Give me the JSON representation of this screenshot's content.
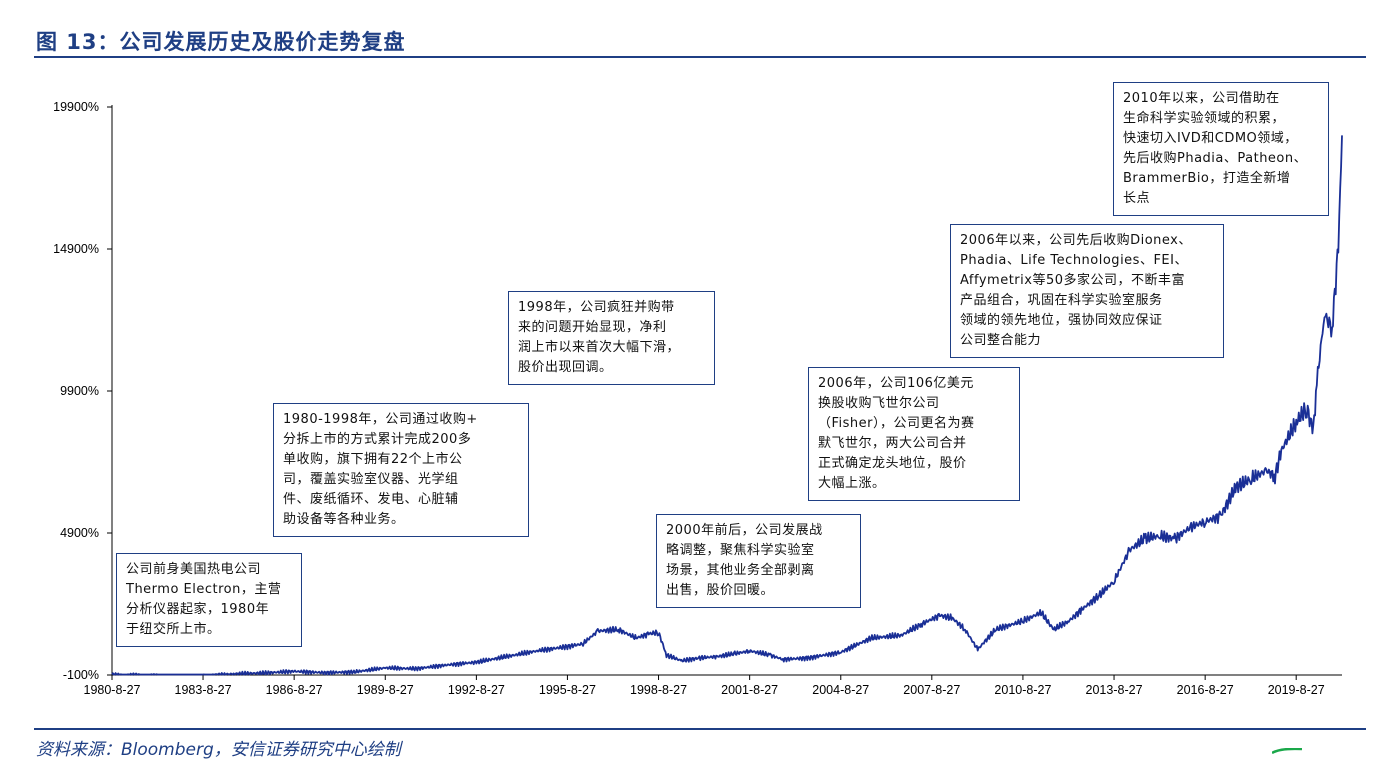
{
  "header": {
    "title": "图 13：公司发展历史及股价走势复盘"
  },
  "footer": {
    "source": "资料来源：Bloomberg，安信证券研究中心绘制"
  },
  "colors": {
    "accent": "#1f3f84",
    "line": "#1a2f96"
  },
  "annotations": [
    {
      "text": "公司前身美国热电公司\nThermo Electron，主营\n分析仪器起家，1980年\n于纽交所上市。"
    },
    {
      "text": "1980-1998年，公司通过收购+\n分拆上市的方式累计完成200多\n单收购，旗下拥有22个上市公\n司，覆盖实验室仪器、光学组\n件、废纸循环、发电、心脏辅\n助设备等各种业务。"
    },
    {
      "text": "1998年，公司疯狂并购带\n来的问题开始显现，净利\n润上市以来首次大幅下滑，\n股价出现回调。"
    },
    {
      "text": "2000年前后，公司发展战\n略调整，聚焦科学实验室\n场景，其他业务全部剥离\n出售，股价回暖。"
    },
    {
      "text": "2006年，公司106亿美元\n换股收购飞世尔公司\n（Fisher），公司更名为赛\n默飞世尔，两大公司合并\n正式确定龙头地位，股价\n大幅上涨。"
    },
    {
      "text": "2006年以来，公司先后收购Dionex、\nPhadia、Life Technologies、FEI、\nAffymetrix等50多家公司，不断丰富\n产品组合，巩固在科学实验室服务\n领域的领先地位，强协同效应保证\n公司整合能力"
    },
    {
      "text": "2010年以来，公司借助在\n生命科学实验领域的积累，\n快速切入IVD和CDMO领域，\n先后收购Phadia、Patheon、\nBrammerBio，打造全新增\n长点"
    }
  ],
  "chart_data": {
    "type": "line",
    "title": "",
    "xlabel": "",
    "ylabel": "",
    "ylim": [
      -100,
      19900
    ],
    "yticks": [
      "-100%",
      "4900%",
      "9900%",
      "14900%",
      "19900%"
    ],
    "ytick_values": [
      -100,
      4900,
      9900,
      14900,
      19900
    ],
    "xticks": [
      "1980-8-27",
      "1983-8-27",
      "1986-8-27",
      "1989-8-27",
      "1992-8-27",
      "1995-8-27",
      "1998-8-27",
      "2001-8-27",
      "2004-8-27",
      "2007-8-27",
      "2010-8-27",
      "2013-8-27",
      "2016-8-27",
      "2019-8-27"
    ],
    "xlim": [
      "1980-8-27",
      "2021-2-28"
    ],
    "series": [
      {
        "x": [
          "1980-8-27",
          "1981-8-27",
          "1982-8-27",
          "1983-8-27",
          "1984-8-27",
          "1985-8-27",
          "1986-8-27",
          "1987-8-27",
          "1988-8-27",
          "1989-8-27",
          "1990-8-27",
          "1991-8-27",
          "1992-8-27",
          "1993-8-27",
          "1994-8-27",
          "1995-8-27",
          "1996-3-1",
          "1996-8-27",
          "1997-5-1",
          "1997-12-1",
          "1998-5-1",
          "1998-8-27",
          "1998-12-1",
          "1999-6-1",
          "2000-1-1",
          "2000-8-1",
          "2001-3-1",
          "2001-8-27",
          "2002-5-1",
          "2002-10-1",
          "2003-8-1",
          "2004-8-27",
          "2005-8-27",
          "2006-8-27",
          "2007-5-1",
          "2007-12-1",
          "2008-5-1",
          "2008-10-1",
          "2009-3-1",
          "2009-10-1",
          "2010-8-27",
          "2011-4-1",
          "2011-9-1",
          "2012-3-1",
          "2012-8-1",
          "2013-3-1",
          "2013-8-27",
          "2014-3-1",
          "2014-9-1",
          "2015-3-1",
          "2015-8-27",
          "2016-3-1",
          "2016-8-27",
          "2017-3-1",
          "2017-8-27",
          "2018-3-1",
          "2018-9-1",
          "2018-12-15",
          "2019-3-1",
          "2019-8-27",
          "2020-1-1",
          "2020-3-20",
          "2020-5-1",
          "2020-8-1",
          "2020-11-1",
          "2021-1-15",
          "2021-2-28"
        ],
        "values": [
          -100,
          -110,
          -150,
          -130,
          -60,
          -30,
          30,
          -20,
          10,
          150,
          120,
          250,
          350,
          550,
          750,
          900,
          1000,
          1450,
          1500,
          1200,
          1350,
          1400,
          600,
          400,
          500,
          550,
          650,
          750,
          600,
          450,
          500,
          700,
          1200,
          1300,
          1700,
          2000,
          1900,
          1500,
          800,
          1500,
          1800,
          2100,
          1500,
          1800,
          2200,
          2700,
          3200,
          4300,
          4700,
          4800,
          4700,
          5100,
          5300,
          5500,
          6500,
          6800,
          7100,
          6900,
          7800,
          8800,
          9300,
          8500,
          10200,
          12600,
          12100,
          15000,
          18900
        ]
      }
    ]
  }
}
